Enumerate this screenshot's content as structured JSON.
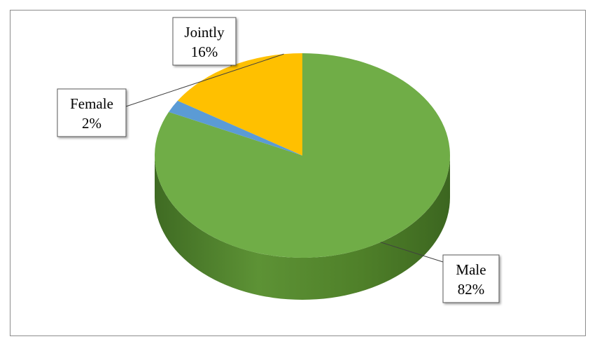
{
  "chart_data": {
    "type": "pie",
    "style": "3d",
    "title": "",
    "slices": [
      {
        "label": "Male",
        "percent_label": "82%",
        "value": 82,
        "color": "#70ad47"
      },
      {
        "label": "Female",
        "percent_label": "2%",
        "value": 2,
        "color": "#5b9bd5"
      },
      {
        "label": "Jointly",
        "percent_label": "16%",
        "value": 16,
        "color": "#ffc000"
      }
    ],
    "legend": "none",
    "data_labels": "callouts"
  }
}
